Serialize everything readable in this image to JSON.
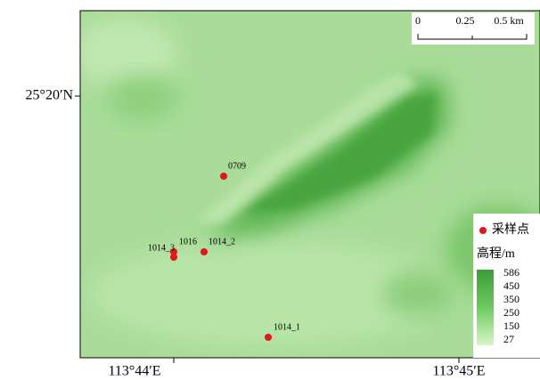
{
  "map": {
    "latitude_label": "25°20′N",
    "longitude_labels": [
      "113°44′E",
      "113°45′E"
    ],
    "scale_bar": {
      "labels": [
        "0",
        "0.25",
        "0.5 km"
      ]
    },
    "sample_points": [
      "0709",
      "1014_3",
      "1016",
      "1014_2",
      "1014_1"
    ],
    "legend": {
      "point_label": "采样点",
      "elevation_title": "高程/m",
      "elevation_ticks": [
        "586",
        "450",
        "350",
        "250",
        "150",
        "27"
      ]
    }
  }
}
